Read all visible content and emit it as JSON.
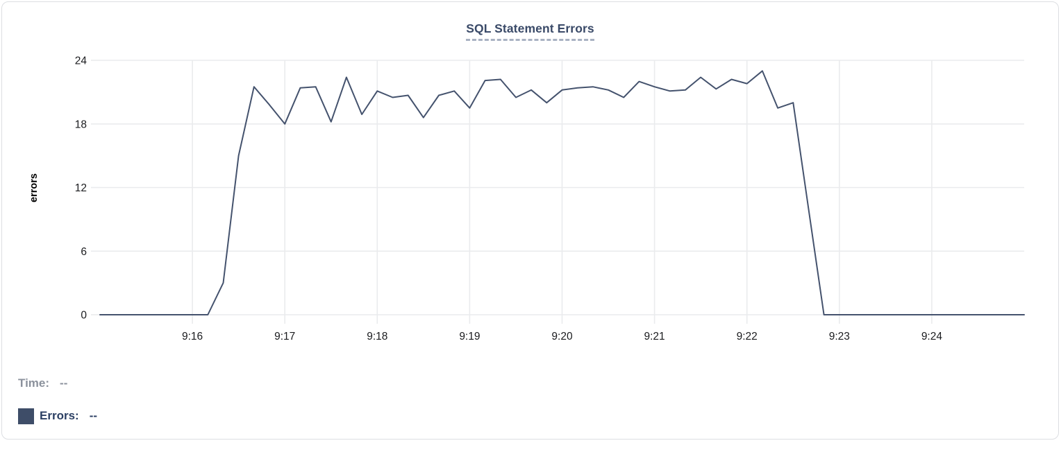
{
  "chart_data": {
    "type": "line",
    "title": "SQL Statement Errors",
    "xlabel": "",
    "ylabel": "errors",
    "x_start": "9:15:00",
    "x_end": "9:25:00",
    "sample_interval_seconds": 10,
    "x_ticks": [
      {
        "label": "9:16",
        "offset_min": 1
      },
      {
        "label": "9:17",
        "offset_min": 2
      },
      {
        "label": "9:18",
        "offset_min": 3
      },
      {
        "label": "9:19",
        "offset_min": 4
      },
      {
        "label": "9:20",
        "offset_min": 5
      },
      {
        "label": "9:21",
        "offset_min": 6
      },
      {
        "label": "9:22",
        "offset_min": 7
      },
      {
        "label": "9:23",
        "offset_min": 8
      },
      {
        "label": "9:24",
        "offset_min": 9
      }
    ],
    "y_ticks": [
      0,
      6,
      12,
      18,
      24
    ],
    "ylim": [
      0,
      24
    ],
    "grid": true,
    "legend_position": "bottom-left",
    "series": [
      {
        "name": "Errors",
        "color": "#44526d",
        "values": [
          0,
          0,
          0,
          0,
          0,
          0,
          0,
          0,
          3,
          15,
          21.5,
          19.8,
          18,
          21.4,
          21.5,
          18.2,
          22.4,
          18.9,
          21.1,
          20.5,
          20.7,
          18.6,
          20.7,
          21.1,
          19.5,
          22.1,
          22.2,
          20.5,
          21.2,
          20,
          21.2,
          21.4,
          21.5,
          21.2,
          20.5,
          22,
          21.5,
          21.1,
          21.2,
          22.4,
          21.3,
          22.2,
          21.8,
          23,
          19.5,
          20,
          10,
          0,
          0,
          0,
          0,
          0,
          0,
          0,
          0,
          0,
          0,
          0,
          0,
          0,
          0
        ]
      }
    ]
  },
  "legend": {
    "time_label": "Time:",
    "time_value": "--",
    "errors_label": "Errors:",
    "errors_value": "--",
    "swatch_color": "#3e4d68"
  },
  "colors": {
    "line": "#44526d",
    "title": "#3a4a68",
    "title_underline": "#a8b1c2",
    "grid": "#eaebed",
    "tick_text": "#1a1b1e",
    "axis_label": "#000000",
    "legend_muted": "#8b919c",
    "legend_strong": "#2b3f63",
    "card_border": "#dcdee2"
  }
}
